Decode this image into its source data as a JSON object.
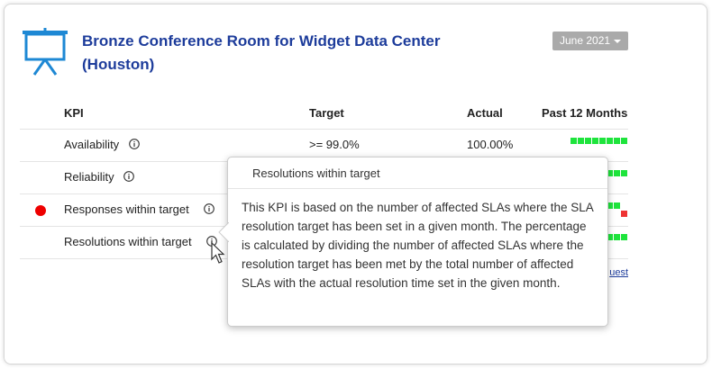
{
  "header": {
    "title": "Bronze Conference Room for Widget Data Center (Houston)",
    "period": "June 2021"
  },
  "table": {
    "columns": [
      "KPI",
      "Target",
      "Actual",
      "Past 12 Months"
    ],
    "rows": [
      [
        "Availability",
        ">= 99.0%",
        "100.00%"
      ],
      [
        "Reliability"
      ],
      [
        "Responses within target"
      ],
      [
        "Resolutions within target"
      ]
    ]
  },
  "link": "uest",
  "tooltip": {
    "title": "Resolutions within target",
    "body": "This KPI is based on the number of affected SLAs where the SLA resolution target has been set in a given month. The percentage is calculated by dividing the number of affected SLAs where the resolution target has been met by the total number of affected SLAs with the actual resolution time set in the given month."
  }
}
